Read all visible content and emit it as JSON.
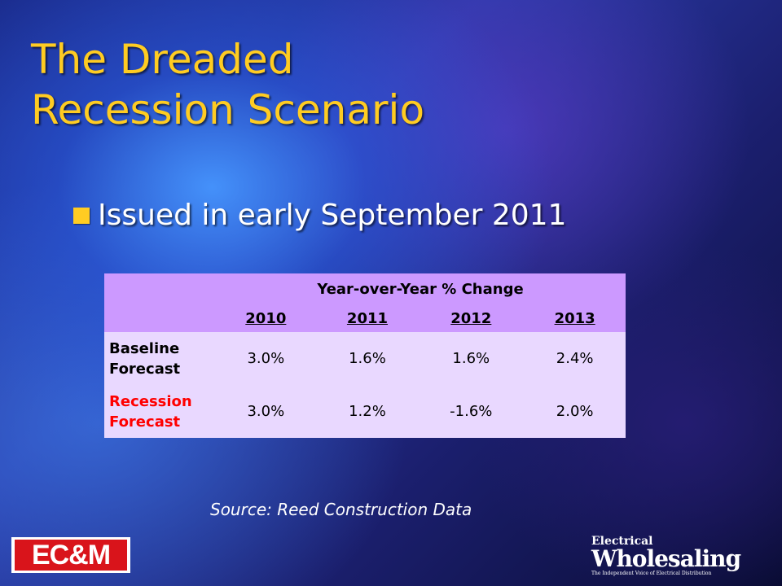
{
  "slide": {
    "title_line1": "The Dreaded",
    "title_line2": "Recession Scenario",
    "bullet": "Issued in early September 2011",
    "source": "Source: Reed Construction Data"
  },
  "table": {
    "header": "Year-over-Year % Change",
    "years": [
      "2010",
      "2011",
      "2012",
      "2013"
    ],
    "rows": [
      {
        "label_line1": "Baseline",
        "label_line2": "Forecast",
        "values": [
          "3.0%",
          "1.6%",
          "1.6%",
          "2.4%"
        ]
      },
      {
        "label_line1": "Recession",
        "label_line2": "Forecast",
        "values": [
          "3.0%",
          "1.2%",
          "-1.6%",
          "2.0%"
        ]
      }
    ]
  },
  "logos": {
    "left": "EC&M",
    "right_line1": "Electrical",
    "right_line2": "Wholesaling",
    "right_tagline": "The Independent Voice of Electrical Distribution"
  },
  "colors": {
    "title": "#ffcc22",
    "table_header": "#cc99ff",
    "table_body": "#e9d8ff",
    "recession_label": "#ff0000",
    "logo_red": "#d9141b"
  }
}
